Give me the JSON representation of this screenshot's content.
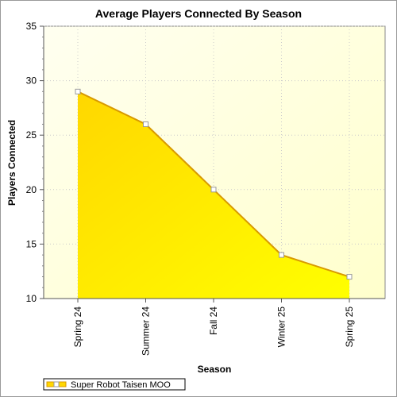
{
  "colors": {
    "area_fill_top": "#ffd700",
    "area_fill_bottom": "#ffff00",
    "area_stroke": "#d89a00",
    "plot_bg_light": "#fffff0",
    "plot_bg_dark": "#ffffcc",
    "marker_fill": "#ffffff",
    "marker_stroke": "#999999",
    "grid": "#cccccc"
  },
  "chart_data": {
    "type": "area",
    "title": "Average Players Connected By Season",
    "xlabel": "Season",
    "ylabel": "Players Connected",
    "categories": [
      "Spring 24",
      "Summer 24",
      "Fall 24",
      "Winter 25",
      "Spring 25"
    ],
    "series": [
      {
        "name": "Super Robot Taisen MOO",
        "values": [
          29,
          26,
          20,
          14,
          12
        ]
      }
    ],
    "ylim": [
      10,
      35
    ],
    "yticks": [
      10,
      15,
      20,
      25,
      30,
      35
    ],
    "grid": true,
    "legend": "bottom-left"
  }
}
